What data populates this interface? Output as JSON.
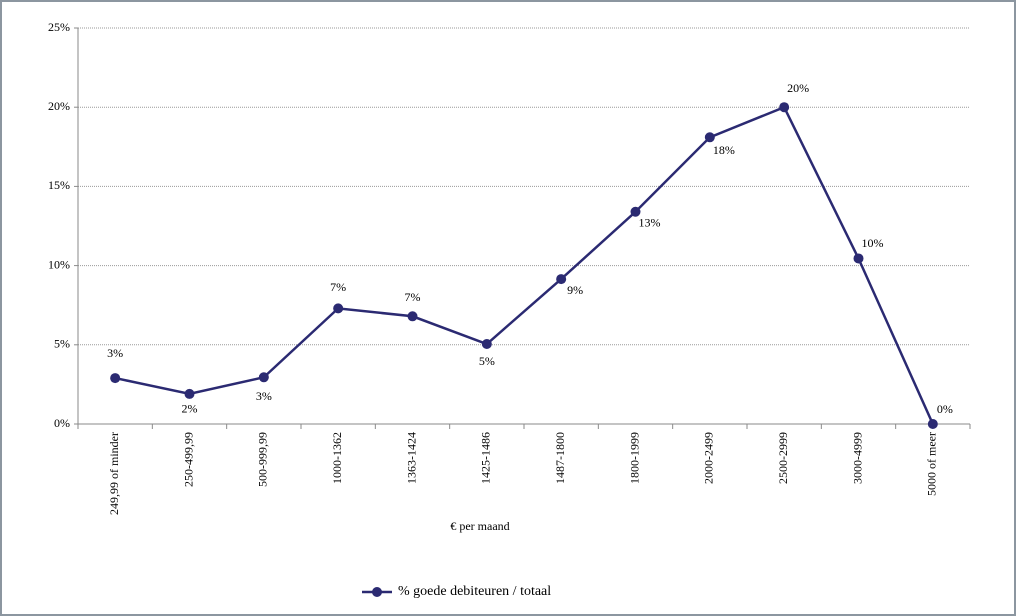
{
  "chart_data": {
    "type": "line",
    "x_label": "€ per maand",
    "categories": [
      "249,99  of minder",
      "250-499,99",
      "500-999,99",
      "1000-1362",
      "1363-1424",
      "1425-1486",
      "1487-1800",
      "1800-1999",
      "2000-2499",
      "2500-2999",
      "3000-4999",
      "5000 of meer"
    ],
    "series": [
      {
        "name": "% goede debiteuren / totaal",
        "color": "#2b2a72",
        "values": [
          2.9,
          1.9,
          2.95,
          7.3,
          6.8,
          5.05,
          9.15,
          13.4,
          18.1,
          20.0,
          10.45,
          0
        ],
        "value_labels": [
          "3%",
          "2%",
          "3%",
          "7%",
          "7%",
          "5%",
          "9%",
          "13%",
          "18%",
          "20%",
          "10%",
          "0%"
        ]
      }
    ],
    "ylim": [
      0,
      25
    ],
    "yticks": [
      {
        "value": 0,
        "label": "0%"
      },
      {
        "value": 5,
        "label": "5%"
      },
      {
        "value": 10,
        "label": "10%"
      },
      {
        "value": 15,
        "label": "15%"
      },
      {
        "value": 20,
        "label": "20%"
      },
      {
        "value": 25,
        "label": "25%"
      }
    ],
    "grid": true,
    "legend": "bottom"
  }
}
